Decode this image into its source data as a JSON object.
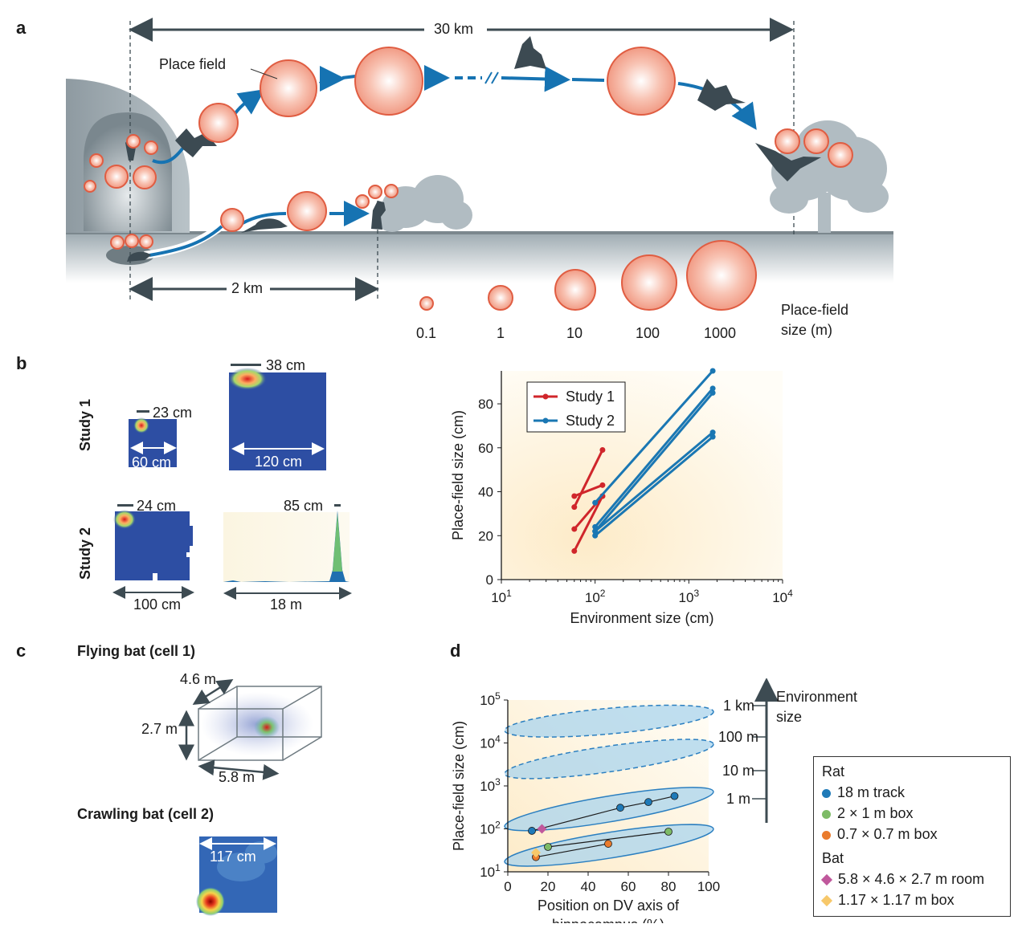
{
  "panels": {
    "a": "a",
    "b": "b",
    "c": "c",
    "d": "d"
  },
  "panel_a": {
    "distance_bat": "30 km",
    "distance_rat": "2 km",
    "place_field_label": "Place field",
    "scale_ticks": [
      "0.1",
      "1",
      "10",
      "100",
      "1000"
    ],
    "scale_title_line1": "Place-field",
    "scale_title_line2": "size (m)"
  },
  "panel_b": {
    "row1_label": "Study 1",
    "row2_label": "Study 2",
    "maps": [
      {
        "field": "23 cm",
        "env": "60 cm"
      },
      {
        "field": "38 cm",
        "env": "120 cm"
      },
      {
        "field": "24 cm",
        "env": "100 cm"
      },
      {
        "field": "85 cm",
        "env": "18 m"
      }
    ]
  },
  "panel_c": {
    "flying_title": "Flying bat (cell 1)",
    "crawling_title": "Crawling bat (cell 2)",
    "dim_depth": "4.6 m",
    "dim_height": "2.7 m",
    "dim_width": "5.8 m",
    "box_width": "117 cm"
  },
  "panel_d": {
    "env_size_line1": "Environment",
    "env_size_line2": "size",
    "env_levels": [
      "1 km",
      "100 m",
      "10 m",
      "1 m"
    ],
    "legend": {
      "rat_header": "Rat",
      "bat_header": "Bat",
      "items": [
        {
          "label": "18 m track",
          "color": "#1f7ab8",
          "shape": "circle"
        },
        {
          "label": "2 × 1 m box",
          "color": "#7dbb66",
          "shape": "circle"
        },
        {
          "label": "0.7 × 0.7 m box",
          "color": "#ea7b2c",
          "shape": "circle"
        },
        {
          "label": "5.8 × 4.6 × 2.7 m room",
          "color": "#c0589c",
          "shape": "diamond"
        },
        {
          "label": "1.17 × 1.17 m box",
          "color": "#f7c86a",
          "shape": "diamond"
        }
      ]
    }
  },
  "chart_data": [
    {
      "type": "line",
      "xlabel": "Environment size (cm)",
      "ylabel": "Place-field size (cm)",
      "xscale": "log",
      "xlim": [
        10,
        10000
      ],
      "ylim": [
        0,
        95
      ],
      "xticks": [
        "10^1",
        "10^2",
        "10^3",
        "10^4"
      ],
      "yticks": [
        "0",
        "20",
        "40",
        "60",
        "80"
      ],
      "legend_position": "top-left",
      "series": [
        {
          "name": "Study 1",
          "color": "#d0262b",
          "segments": [
            [
              [
                60,
                38
              ],
              [
                120,
                43
              ]
            ],
            [
              [
                60,
                33
              ],
              [
                120,
                59
              ]
            ],
            [
              [
                60,
                23
              ],
              [
                120,
                38
              ]
            ],
            [
              [
                60,
                13
              ],
              [
                120,
                38
              ]
            ]
          ]
        },
        {
          "name": "Study 2",
          "color": "#1a77b3",
          "segments": [
            [
              [
                100,
                35
              ],
              [
                1800,
                95
              ]
            ],
            [
              [
                100,
                24
              ],
              [
                1800,
                87
              ]
            ],
            [
              [
                100,
                22
              ],
              [
                1800,
                85
              ]
            ],
            [
              [
                100,
                22
              ],
              [
                1800,
                67
              ]
            ],
            [
              [
                100,
                20
              ],
              [
                1800,
                65
              ]
            ]
          ]
        }
      ]
    },
    {
      "type": "scatter",
      "xlabel_line1": "Position on DV axis of",
      "xlabel_line2": "hippocampus (%)",
      "ylabel": "Place-field size (cm)",
      "yscale": "log",
      "xlim": [
        0,
        100
      ],
      "ylim": [
        10,
        100000
      ],
      "xticks": [
        "0",
        "20",
        "40",
        "60",
        "80",
        "100"
      ],
      "yticks": [
        "10^1",
        "10^2",
        "10^3",
        "10^4",
        "10^5"
      ],
      "series": [
        {
          "name": "18 m track",
          "color": "#1f7ab8",
          "points": [
            [
              12,
              90
            ],
            [
              56,
              310
            ],
            [
              70,
              420
            ],
            [
              83,
              580
            ]
          ]
        },
        {
          "name": "2 × 1 m box",
          "color": "#7dbb66",
          "points": [
            [
              20,
              38
            ],
            [
              80,
              86
            ]
          ]
        },
        {
          "name": "0.7 × 0.7 m box",
          "color": "#ea7b2c",
          "points": [
            [
              14,
              22
            ],
            [
              50,
              45
            ]
          ]
        },
        {
          "name": "5.8 × 4.6 × 2.7 m room",
          "color": "#c0589c",
          "points": [
            [
              17,
              100
            ]
          ]
        },
        {
          "name": "1.17 × 1.17 m box",
          "color": "#f7c86a",
          "points": [
            [
              14,
              28
            ]
          ]
        }
      ]
    }
  ]
}
